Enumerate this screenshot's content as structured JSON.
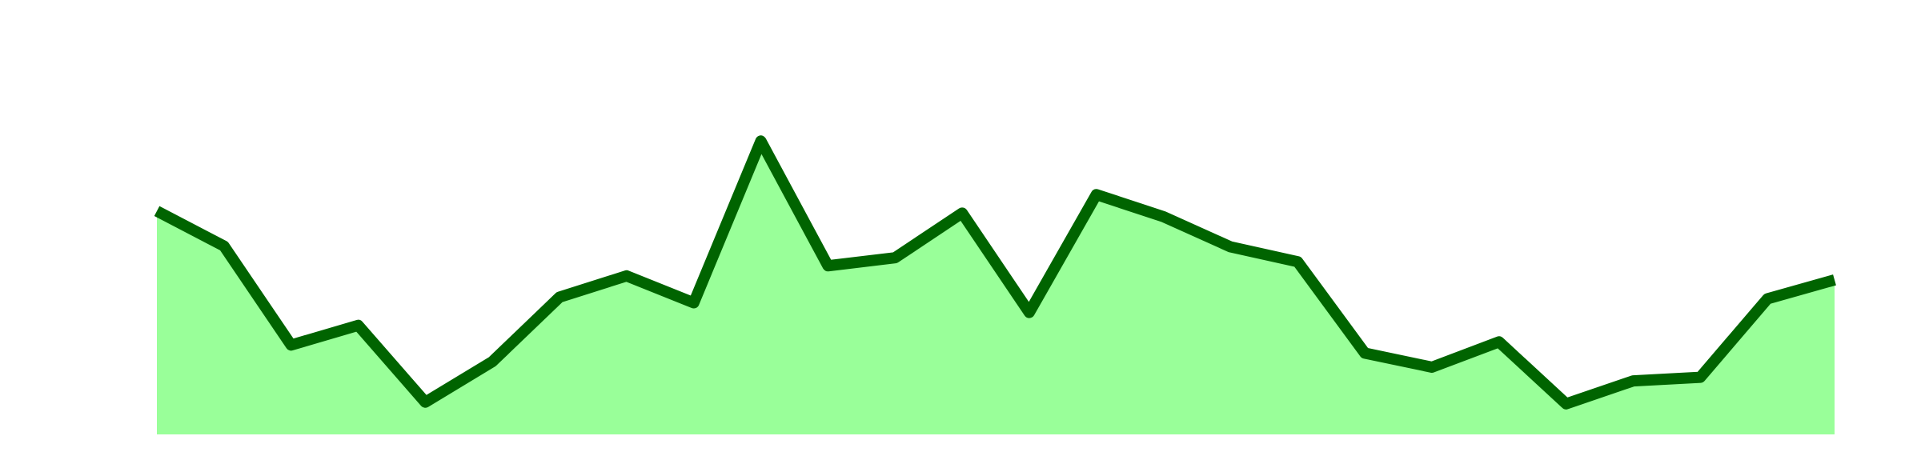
{
  "chart_data": {
    "type": "area",
    "title": "",
    "xlabel": "",
    "ylabel": "",
    "grid": false,
    "legend": "none",
    "x": [
      0,
      1,
      2,
      3,
      4,
      5,
      6,
      7,
      8,
      9,
      10,
      11,
      12,
      13,
      14,
      15,
      16,
      17,
      18,
      19,
      20,
      21,
      22,
      23,
      24,
      25
    ],
    "ylim": [
      0,
      100
    ],
    "series": [
      {
        "values": [
          55.5,
          46.8,
          22.2,
          27.1,
          8.0,
          18.1,
          34.1,
          39.4,
          32.7,
          72.9,
          41.9,
          43.9,
          55.0,
          30.3,
          59.6,
          54.1,
          46.6,
          42.9,
          20.2,
          16.7,
          23.0,
          7.6,
          13.3,
          14.2,
          33.7,
          38.4
        ],
        "line_color": "#006400",
        "fill_color": "#99ff99"
      }
    ]
  }
}
